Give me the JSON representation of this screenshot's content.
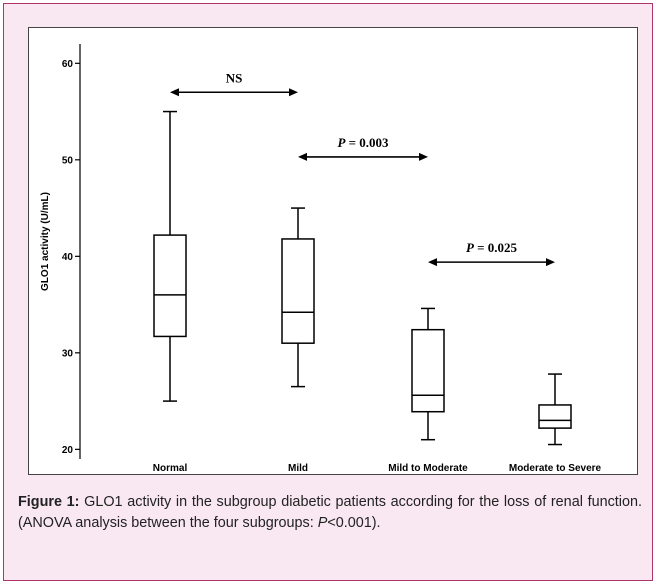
{
  "caption": {
    "label": "Figure 1:",
    "text": "GLO1 activity in the subgroup diabetic patients according for the loss of renal function. (ANOVA analysis between the four subgroups: ",
    "p_symbol": "P",
    "p_rest": "<0.001)."
  },
  "colors": {
    "frame_border": "#b0356e",
    "frame_fill": "#f9e8f1",
    "ink": "#000000"
  },
  "chart_data": {
    "type": "box",
    "ylabel": "GLO1 activity (U/mL)",
    "xlabel": "",
    "ylim": [
      19,
      62
    ],
    "yticks": [
      20,
      30,
      40,
      50,
      60
    ],
    "categories": [
      "Normal",
      "Mild",
      "Mild to Moderate",
      "Moderate to Severe"
    ],
    "boxes": [
      {
        "min": 25.0,
        "q1": 31.7,
        "median": 36.0,
        "q3": 42.2,
        "max": 55.0
      },
      {
        "min": 26.5,
        "q1": 31.0,
        "median": 34.2,
        "q3": 41.8,
        "max": 45.0
      },
      {
        "min": 21.0,
        "q1": 23.9,
        "median": 25.6,
        "q3": 32.4,
        "max": 34.6
      },
      {
        "min": 20.5,
        "q1": 22.2,
        "median": 23.0,
        "q3": 24.6,
        "max": 27.8
      }
    ],
    "annotations": [
      {
        "from": 0,
        "to": 1,
        "y": 57.0,
        "label_italic": "",
        "label_rest": "NS"
      },
      {
        "from": 1,
        "to": 2,
        "y": 50.3,
        "label_italic": "P",
        "label_rest": " = 0.003"
      },
      {
        "from": 2,
        "to": 3,
        "y": 39.4,
        "label_italic": "P",
        "label_rest": " = 0.025"
      }
    ]
  }
}
